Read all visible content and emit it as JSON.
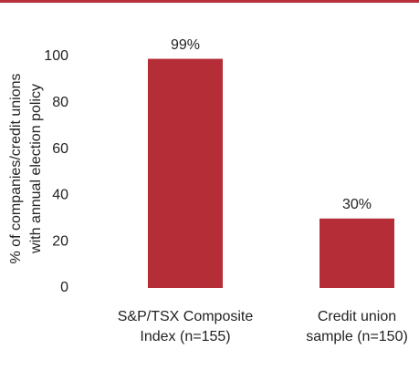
{
  "chart_data": {
    "type": "bar",
    "y_label": "% of companies/credit unions\nwith annual election policy",
    "categories": [
      "S&P/TSX Composite\nIndex (n=155)",
      "Credit union\nsample (n=150)"
    ],
    "values": [
      99,
      30
    ],
    "value_labels": [
      "99%",
      "30%"
    ],
    "color": "#b52d36",
    "ylim": [
      0,
      100
    ],
    "yticks": [
      0,
      20,
      40,
      60,
      80,
      100
    ],
    "grid": false
  }
}
